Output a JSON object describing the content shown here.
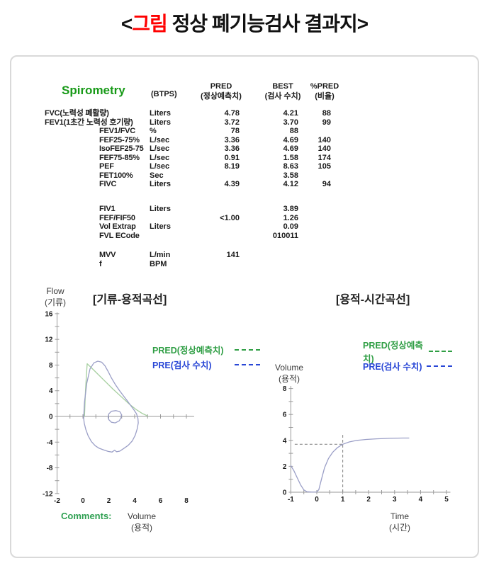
{
  "page_title": {
    "prefix": "<",
    "highlight": "그림",
    "suffix": " 정상 폐기능검사 결과지>"
  },
  "colors": {
    "title_highlight": "#ff0000",
    "spirometry_green": "#189a18",
    "legend_green": "#2f9e44",
    "legend_blue": "#2947d6",
    "comments_green": "#2fa052",
    "curve_measured": "#9b9fc7",
    "curve_predicted": "#a6cf9f",
    "card_border": "#d9d9d9",
    "axis_gray": "#9a9a9a"
  },
  "table": {
    "title": "Spirometry",
    "btps": "(BTPS)",
    "headers": {
      "pred_en": "PRED",
      "pred_kr": "(정상예측치)",
      "best_en": "BEST",
      "best_kr": "(검사 수치)",
      "pct_en": "%PRED",
      "pct_kr": "(비율)"
    },
    "blocks": [
      {
        "rows": [
          {
            "name": "FVC(노력성 폐활량)",
            "long": true,
            "unit": "Liters",
            "pred": "4.78",
            "best": "4.21",
            "pct": "88"
          },
          {
            "name": "FEV1(1초간 노력성 호기량)",
            "long": true,
            "unit": "Liters",
            "pred": "3.72",
            "best": "3.70",
            "pct": "99"
          },
          {
            "name": "FEV1/FVC",
            "unit": "%",
            "pred": "78",
            "best": "88",
            "pct": ""
          },
          {
            "name": "FEF25-75%",
            "unit": "L/sec",
            "pred": "3.36",
            "best": "4.69",
            "pct": "140"
          },
          {
            "name": "IsoFEF25-75",
            "unit": "L/sec",
            "pred": "3.36",
            "best": "4.69",
            "pct": "140"
          },
          {
            "name": "FEF75-85%",
            "unit": "L/sec",
            "pred": "0.91",
            "best": "1.58",
            "pct": "174"
          },
          {
            "name": "PEF",
            "unit": "L/sec",
            "pred": "8.19",
            "best": "8.63",
            "pct": "105"
          },
          {
            "name": "FET100%",
            "unit": "Sec",
            "pred": "",
            "best": "3.58",
            "pct": ""
          },
          {
            "name": "FIVC",
            "unit": "Liters",
            "pred": "4.39",
            "best": "4.12",
            "pct": "94"
          }
        ]
      },
      {
        "rows": [
          {
            "name": "FIV1",
            "unit": "Liters",
            "pred": "",
            "best": "3.89",
            "pct": ""
          },
          {
            "name": "FEF/FIF50",
            "unit": "",
            "pred": "<1.00",
            "best": "1.26",
            "pct": ""
          },
          {
            "name": "Vol Extrap",
            "unit": "Liters",
            "pred": "",
            "best": "0.09",
            "pct": ""
          },
          {
            "name": "FVL ECode",
            "unit": "",
            "pred": "",
            "best": "010011",
            "pct": ""
          }
        ]
      },
      {
        "rows": [
          {
            "name": "MVV",
            "unit": "L/min",
            "pred": "141",
            "best": "",
            "pct": ""
          },
          {
            "name": "f",
            "unit": "BPM",
            "pred": "",
            "best": "",
            "pct": ""
          }
        ]
      }
    ]
  },
  "charts": {
    "left": {
      "title": "[기류-용적곡선]",
      "ylabel_en": "Flow",
      "ylabel_kr": "(기류)",
      "xlabel_en": "Volume",
      "xlabel_kr": "(용적)",
      "legend": {
        "pred": "PRED(정상예측치)",
        "pre": "PRE(검사 수치)"
      },
      "comments": "Comments:"
    },
    "right": {
      "title": "[용적-시간곡선]",
      "ylabel_en": "Volume",
      "ylabel_kr": "(용적)",
      "xlabel_en": "Time",
      "xlabel_kr": "(시간)",
      "legend": {
        "pred": "PRED(정상예측치)",
        "pre": "PRE(검사 수치)"
      }
    }
  },
  "chart_data": [
    {
      "type": "line",
      "title": "[기류-용적곡선]",
      "xlabel": "Volume (용적)",
      "ylabel": "Flow (기류)",
      "xlim": [
        -2,
        8.6
      ],
      "ylim": [
        -12,
        16.2
      ],
      "x_axis_y": 0,
      "y_axis_x": -2,
      "xticks": [
        -2,
        0,
        2,
        4,
        6,
        8
      ],
      "xminor": 1,
      "yticks": [
        16,
        12,
        8,
        4,
        0,
        -4,
        -8,
        -12
      ],
      "yminor": 2,
      "axis_color": "#9a9a9a",
      "map": {
        "x0": 67,
        "xscale": 18.25,
        "y0": 158,
        "yscale": 9.07
      },
      "series": [
        {
          "name": "PRED(정상예측치)",
          "color": "#a6cf9f",
          "points": [
            [
              0.12,
              0
            ],
            [
              0.2,
              4.2
            ],
            [
              0.33,
              8.2
            ],
            [
              0.9,
              7.1
            ],
            [
              1.6,
              5.7
            ],
            [
              2.3,
              4.3
            ],
            [
              3.0,
              3.0
            ],
            [
              3.6,
              1.9
            ],
            [
              4.1,
              1.1
            ],
            [
              4.6,
              0.45
            ],
            [
              5.0,
              0.08
            ]
          ]
        },
        {
          "name": "PRE(검사 수치) loop",
          "color": "#9b9fc7",
          "points": [
            [
              0.07,
              0.3
            ],
            [
              0.12,
              2.2
            ],
            [
              0.3,
              5.2
            ],
            [
              0.55,
              7.4
            ],
            [
              0.85,
              8.35
            ],
            [
              1.15,
              8.6
            ],
            [
              1.45,
              8.45
            ],
            [
              1.7,
              7.9
            ],
            [
              1.95,
              7.0
            ],
            [
              2.2,
              6.0
            ],
            [
              2.5,
              5.0
            ],
            [
              2.8,
              4.1
            ],
            [
              3.1,
              3.3
            ],
            [
              3.4,
              2.5
            ],
            [
              3.7,
              1.7
            ],
            [
              3.95,
              1.0
            ],
            [
              4.15,
              0.4
            ],
            [
              4.25,
              -0.3
            ],
            [
              4.28,
              -1.0
            ],
            [
              4.2,
              -1.9
            ],
            [
              4.05,
              -2.9
            ],
            [
              3.82,
              -3.8
            ],
            [
              3.5,
              -4.5
            ],
            [
              3.15,
              -5.0
            ],
            [
              2.85,
              -5.4
            ],
            [
              2.6,
              -5.5
            ],
            [
              2.45,
              -5.25
            ],
            [
              2.25,
              -5.55
            ],
            [
              1.95,
              -5.45
            ],
            [
              1.6,
              -5.2
            ],
            [
              1.25,
              -4.95
            ],
            [
              0.95,
              -4.55
            ],
            [
              0.65,
              -3.9
            ],
            [
              0.4,
              -3.0
            ],
            [
              0.22,
              -2.0
            ],
            [
              0.1,
              -1.0
            ],
            [
              0.06,
              -0.3
            ],
            [
              0.07,
              0.3
            ]
          ]
        },
        {
          "name": "tidal loop",
          "color": "#9b9fc7",
          "points": [
            [
              1.95,
              -0.15
            ],
            [
              2.0,
              0.4
            ],
            [
              2.2,
              0.8
            ],
            [
              2.55,
              0.9
            ],
            [
              2.85,
              0.75
            ],
            [
              2.98,
              0.3
            ],
            [
              2.95,
              -0.2
            ],
            [
              2.8,
              -0.7
            ],
            [
              2.5,
              -1.0
            ],
            [
              2.2,
              -0.9
            ],
            [
              2.0,
              -0.5
            ],
            [
              1.95,
              -0.15
            ]
          ]
        }
      ]
    },
    {
      "type": "line",
      "title": "[용적-시간곡선]",
      "xlabel": "Time (시간)",
      "ylabel": "Volume (용적)",
      "xlim": [
        -1,
        5.15
      ],
      "ylim": [
        0,
        8.2
      ],
      "x_axis_y": 0,
      "y_axis_x": -1,
      "xticks": [
        -1,
        0,
        1,
        2,
        3,
        4,
        5
      ],
      "xminor": 0.5,
      "yticks": [
        8,
        6,
        4,
        2,
        0
      ],
      "yminor": 1,
      "axis_color": "#9a9a9a",
      "map": {
        "x0": 67,
        "xscale": 36.6,
        "y0": 155,
        "yscale": 18.3
      },
      "dashed": [
        {
          "x1": -0.85,
          "y1": 3.7,
          "x2": 1,
          "y2": 3.7
        },
        {
          "x1": 1,
          "y1": 0,
          "x2": 1,
          "y2": 4.42
        }
      ],
      "series": [
        {
          "name": "PRE(검사 수치)",
          "color": "#9b9fc7",
          "points": [
            [
              -1,
              2.05
            ],
            [
              -0.88,
              1.65
            ],
            [
              -0.75,
              1.1
            ],
            [
              -0.62,
              0.55
            ],
            [
              -0.5,
              0.18
            ],
            [
              -0.38,
              0.04
            ],
            [
              -0.2,
              0.01
            ],
            [
              0.0,
              0.02
            ],
            [
              0.08,
              0.2
            ],
            [
              0.18,
              1.0
            ],
            [
              0.3,
              1.9
            ],
            [
              0.45,
              2.6
            ],
            [
              0.62,
              3.1
            ],
            [
              0.8,
              3.45
            ],
            [
              1.0,
              3.7
            ],
            [
              1.25,
              3.88
            ],
            [
              1.55,
              4.0
            ],
            [
              1.9,
              4.07
            ],
            [
              2.3,
              4.12
            ],
            [
              2.8,
              4.16
            ],
            [
              3.3,
              4.18
            ],
            [
              3.55,
              4.18
            ]
          ]
        }
      ]
    }
  ]
}
